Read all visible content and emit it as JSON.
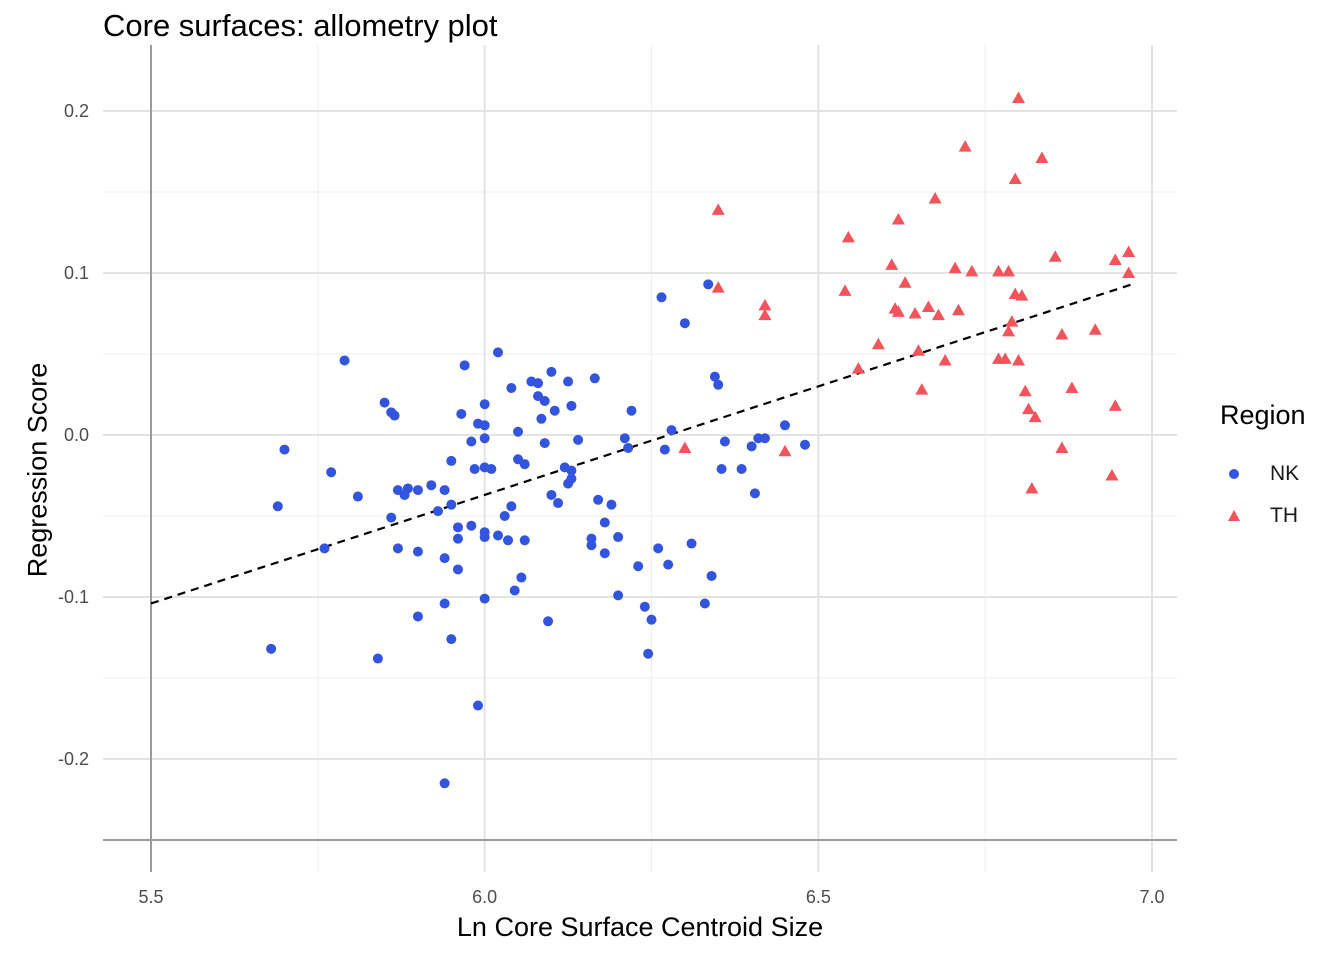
{
  "chart_data": {
    "type": "scatter",
    "title": "Core surfaces: allometry plot",
    "xlabel": "Ln Core Surface Centroid Size",
    "ylabel": "Regression Score",
    "xlim": [
      5.43,
      7.04
    ],
    "ylim": [
      -0.268,
      0.232
    ],
    "x_ticks": [
      5.5,
      6.0,
      6.5,
      7.0
    ],
    "x_tick_labels": [
      "5.5",
      "6.0",
      "6.5",
      "7.0"
    ],
    "y_ticks": [
      -0.2,
      -0.1,
      0.0,
      0.1,
      0.2
    ],
    "y_tick_labels": [
      "-0.2",
      "-0.1",
      "0.0",
      "0.1",
      "0.2"
    ],
    "grid": true,
    "legend": {
      "title": "Region",
      "position": "right"
    },
    "trend_line": {
      "style": "dashed",
      "color": "#000000",
      "x": [
        5.5,
        6.97
      ],
      "y": [
        -0.104,
        0.093
      ]
    },
    "series": [
      {
        "name": "NK",
        "marker": "circle",
        "color": "#3355dd",
        "points": [
          [
            5.68,
            -0.132
          ],
          [
            5.69,
            -0.044
          ],
          [
            5.7,
            -0.009
          ],
          [
            5.76,
            -0.07
          ],
          [
            5.77,
            -0.023
          ],
          [
            5.79,
            0.046
          ],
          [
            5.81,
            -0.038
          ],
          [
            5.84,
            -0.138
          ],
          [
            5.85,
            0.02
          ],
          [
            5.86,
            0.014
          ],
          [
            5.865,
            0.012
          ],
          [
            5.87,
            -0.034
          ],
          [
            5.88,
            -0.037
          ],
          [
            5.885,
            -0.033
          ],
          [
            5.86,
            -0.051
          ],
          [
            5.87,
            -0.07
          ],
          [
            5.9,
            -0.034
          ],
          [
            5.9,
            -0.072
          ],
          [
            5.9,
            -0.112
          ],
          [
            5.92,
            -0.031
          ],
          [
            5.93,
            -0.047
          ],
          [
            5.94,
            -0.034
          ],
          [
            5.94,
            -0.076
          ],
          [
            5.94,
            -0.104
          ],
          [
            5.95,
            -0.016
          ],
          [
            5.95,
            -0.043
          ],
          [
            5.95,
            -0.126
          ],
          [
            5.96,
            -0.057
          ],
          [
            5.96,
            -0.064
          ],
          [
            5.96,
            -0.083
          ],
          [
            5.965,
            0.013
          ],
          [
            5.97,
            0.043
          ],
          [
            5.98,
            -0.056
          ],
          [
            5.98,
            -0.004
          ],
          [
            5.985,
            -0.021
          ],
          [
            5.99,
            0.007
          ],
          [
            5.99,
            -0.167
          ],
          [
            5.94,
            -0.215
          ],
          [
            6.0,
            0.019
          ],
          [
            6.0,
            0.006
          ],
          [
            6.0,
            -0.002
          ],
          [
            6.0,
            -0.02
          ],
          [
            6.01,
            -0.021
          ],
          [
            6.0,
            -0.06
          ],
          [
            6.0,
            -0.063
          ],
          [
            6.0,
            -0.101
          ],
          [
            6.02,
            -0.062
          ],
          [
            6.02,
            0.051
          ],
          [
            6.03,
            -0.05
          ],
          [
            6.035,
            -0.065
          ],
          [
            6.04,
            -0.044
          ],
          [
            6.04,
            0.029
          ],
          [
            6.045,
            -0.096
          ],
          [
            6.05,
            0.002
          ],
          [
            6.05,
            -0.015
          ],
          [
            6.055,
            -0.088
          ],
          [
            6.06,
            -0.018
          ],
          [
            6.06,
            -0.065
          ],
          [
            6.07,
            0.033
          ],
          [
            6.08,
            0.032
          ],
          [
            6.08,
            0.024
          ],
          [
            6.085,
            0.01
          ],
          [
            6.09,
            0.021
          ],
          [
            6.09,
            -0.005
          ],
          [
            6.095,
            -0.115
          ],
          [
            6.1,
            0.039
          ],
          [
            6.1,
            -0.037
          ],
          [
            6.105,
            0.015
          ],
          [
            6.11,
            -0.042
          ],
          [
            6.12,
            -0.02
          ],
          [
            6.125,
            0.033
          ],
          [
            6.125,
            -0.03
          ],
          [
            6.13,
            0.018
          ],
          [
            6.13,
            -0.022
          ],
          [
            6.13,
            -0.027
          ],
          [
            6.14,
            -0.003
          ],
          [
            6.16,
            -0.064
          ],
          [
            6.16,
            -0.068
          ],
          [
            6.165,
            0.035
          ],
          [
            6.17,
            -0.04
          ],
          [
            6.18,
            -0.054
          ],
          [
            6.18,
            -0.073
          ],
          [
            6.19,
            -0.043
          ],
          [
            6.2,
            -0.063
          ],
          [
            6.2,
            -0.099
          ],
          [
            6.21,
            -0.002
          ],
          [
            6.215,
            -0.008
          ],
          [
            6.22,
            0.015
          ],
          [
            6.23,
            -0.081
          ],
          [
            6.24,
            -0.106
          ],
          [
            6.245,
            -0.135
          ],
          [
            6.25,
            -0.114
          ],
          [
            6.26,
            -0.07
          ],
          [
            6.265,
            0.085
          ],
          [
            6.27,
            -0.009
          ],
          [
            6.275,
            -0.08
          ],
          [
            6.28,
            0.003
          ],
          [
            6.3,
            0.069
          ],
          [
            6.31,
            -0.067
          ],
          [
            6.33,
            -0.104
          ],
          [
            6.335,
            0.093
          ],
          [
            6.34,
            -0.087
          ],
          [
            6.345,
            0.036
          ],
          [
            6.35,
            0.031
          ],
          [
            6.355,
            -0.021
          ],
          [
            6.36,
            -0.004
          ],
          [
            6.385,
            -0.021
          ],
          [
            6.4,
            -0.007
          ],
          [
            6.405,
            -0.036
          ],
          [
            6.41,
            -0.002
          ],
          [
            6.42,
            -0.002
          ],
          [
            6.45,
            0.006
          ],
          [
            6.48,
            -0.006
          ]
        ]
      },
      {
        "name": "TH",
        "marker": "triangle",
        "color": "#f2545b",
        "points": [
          [
            6.3,
            -0.008
          ],
          [
            6.35,
            0.139
          ],
          [
            6.35,
            0.091
          ],
          [
            6.42,
            0.08
          ],
          [
            6.42,
            0.074
          ],
          [
            6.45,
            -0.01
          ],
          [
            6.54,
            0.089
          ],
          [
            6.545,
            0.122
          ],
          [
            6.56,
            0.041
          ],
          [
            6.59,
            0.056
          ],
          [
            6.61,
            0.105
          ],
          [
            6.615,
            0.078
          ],
          [
            6.62,
            0.133
          ],
          [
            6.62,
            0.076
          ],
          [
            6.63,
            0.094
          ],
          [
            6.645,
            0.075
          ],
          [
            6.65,
            0.052
          ],
          [
            6.655,
            0.028
          ],
          [
            6.665,
            0.079
          ],
          [
            6.675,
            0.146
          ],
          [
            6.68,
            0.074
          ],
          [
            6.69,
            0.046
          ],
          [
            6.705,
            0.103
          ],
          [
            6.71,
            0.077
          ],
          [
            6.72,
            0.178
          ],
          [
            6.73,
            0.101
          ],
          [
            6.77,
            0.101
          ],
          [
            6.77,
            0.047
          ],
          [
            6.78,
            0.047
          ],
          [
            6.785,
            0.101
          ],
          [
            6.785,
            0.064
          ],
          [
            6.79,
            0.07
          ],
          [
            6.795,
            0.158
          ],
          [
            6.795,
            0.087
          ],
          [
            6.8,
            0.208
          ],
          [
            6.8,
            0.046
          ],
          [
            6.805,
            0.086
          ],
          [
            6.81,
            0.027
          ],
          [
            6.815,
            0.016
          ],
          [
            6.82,
            -0.033
          ],
          [
            6.825,
            0.011
          ],
          [
            6.835,
            0.171
          ],
          [
            6.855,
            0.11
          ],
          [
            6.865,
            0.062
          ],
          [
            6.865,
            -0.008
          ],
          [
            6.88,
            0.029
          ],
          [
            6.915,
            0.065
          ],
          [
            6.94,
            -0.025
          ],
          [
            6.945,
            0.018
          ],
          [
            6.945,
            0.108
          ],
          [
            6.965,
            0.113
          ],
          [
            6.965,
            0.1
          ]
        ]
      }
    ]
  }
}
